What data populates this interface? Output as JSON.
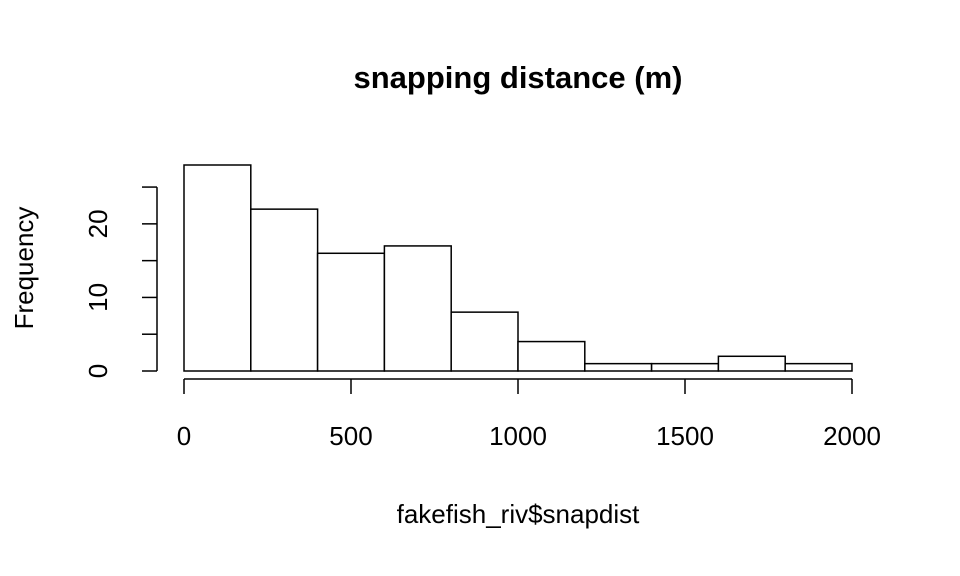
{
  "chart_data": {
    "type": "histogram",
    "title": "snapping distance (m)",
    "x_label": "fakefish_riv$snapdist",
    "y_label": "Frequency",
    "bins": [
      0,
      200,
      400,
      600,
      800,
      1000,
      1200,
      1400,
      1600,
      1800,
      2000
    ],
    "values": [
      28,
      22,
      16,
      17,
      8,
      4,
      1,
      1,
      2,
      1
    ],
    "color": "#ffffff",
    "xlim": [
      0,
      2000
    ],
    "xticks": [
      0,
      500,
      1000,
      1500,
      2000
    ],
    "ylim": [
      0,
      28
    ],
    "yticks": [
      0,
      10,
      20
    ],
    "yminorticks": [
      5,
      15,
      25
    ],
    "grid": false
  }
}
